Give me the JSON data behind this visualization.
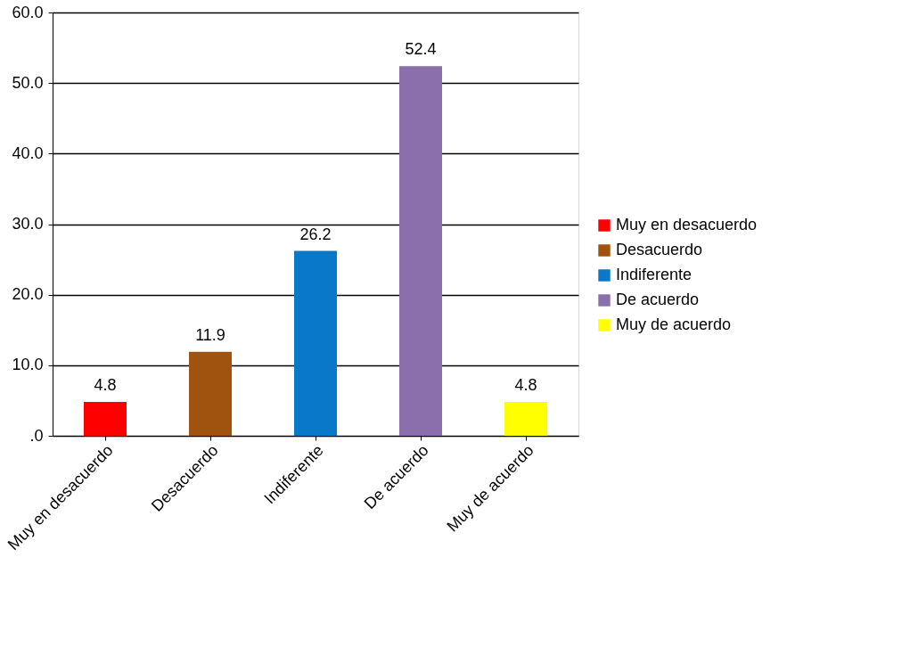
{
  "chart_data": {
    "type": "bar",
    "categories": [
      "Muy en desacuerdo",
      "Desacuerdo",
      "Indiferente",
      "De acuerdo",
      "Muy de acuerdo"
    ],
    "series": [
      {
        "name": "Muy en desacuerdo",
        "color": "#ff0000",
        "values": [
          4.8,
          null,
          null,
          null,
          null
        ]
      },
      {
        "name": "Desacuerdo",
        "color": "#a0520f",
        "values": [
          null,
          11.9,
          null,
          null,
          null
        ]
      },
      {
        "name": "Indiferente",
        "color": "#0a78c8",
        "values": [
          null,
          null,
          26.2,
          null,
          null
        ]
      },
      {
        "name": "De acuerdo",
        "color": "#8b6fac",
        "values": [
          null,
          null,
          null,
          52.4,
          null
        ]
      },
      {
        "name": "Muy de acuerdo",
        "color": "#ffff00",
        "values": [
          null,
          null,
          null,
          null,
          4.8
        ]
      }
    ],
    "ylim": [
      0,
      60
    ],
    "yticks": [
      {
        "value": 0,
        "label": ".0"
      },
      {
        "value": 10,
        "label": "10.0"
      },
      {
        "value": 20,
        "label": "20.0"
      },
      {
        "value": 30,
        "label": "30.0"
      },
      {
        "value": 40,
        "label": "40.0"
      },
      {
        "value": 50,
        "label": "50.0"
      },
      {
        "value": 60,
        "label": "60.0"
      }
    ],
    "grid": "y",
    "legend": "right",
    "data_labels": true
  }
}
